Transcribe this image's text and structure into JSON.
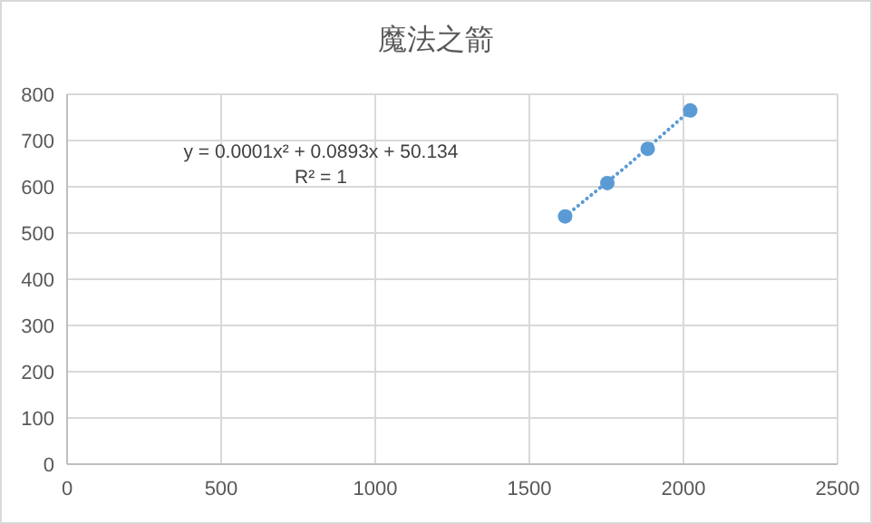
{
  "chart_data": {
    "type": "scatter",
    "title": "魔法之箭",
    "annotations": [
      "y = 0.0001x² + 0.0893x + 50.134",
      "R² = 1"
    ],
    "series": [
      {
        "color": "#5b9bd5",
        "marker": "circle",
        "x": [
          1616,
          1753,
          1884,
          2022
        ],
        "values": [
          536,
          608,
          682,
          765
        ]
      },
      {
        "type": "line",
        "color": "#5b9bd5",
        "line_style": "dotted",
        "x": [
          1616,
          1820,
          2022
        ],
        "values": [
          536,
          647,
          765
        ]
      }
    ],
    "xlim": [
      0,
      2500
    ],
    "xticks": [
      0,
      500,
      1000,
      1500,
      2000,
      2500
    ],
    "ylim": [
      0,
      800
    ],
    "yticks": [
      0,
      100,
      200,
      300,
      400,
      500,
      600,
      700,
      800
    ],
    "grid": true
  }
}
